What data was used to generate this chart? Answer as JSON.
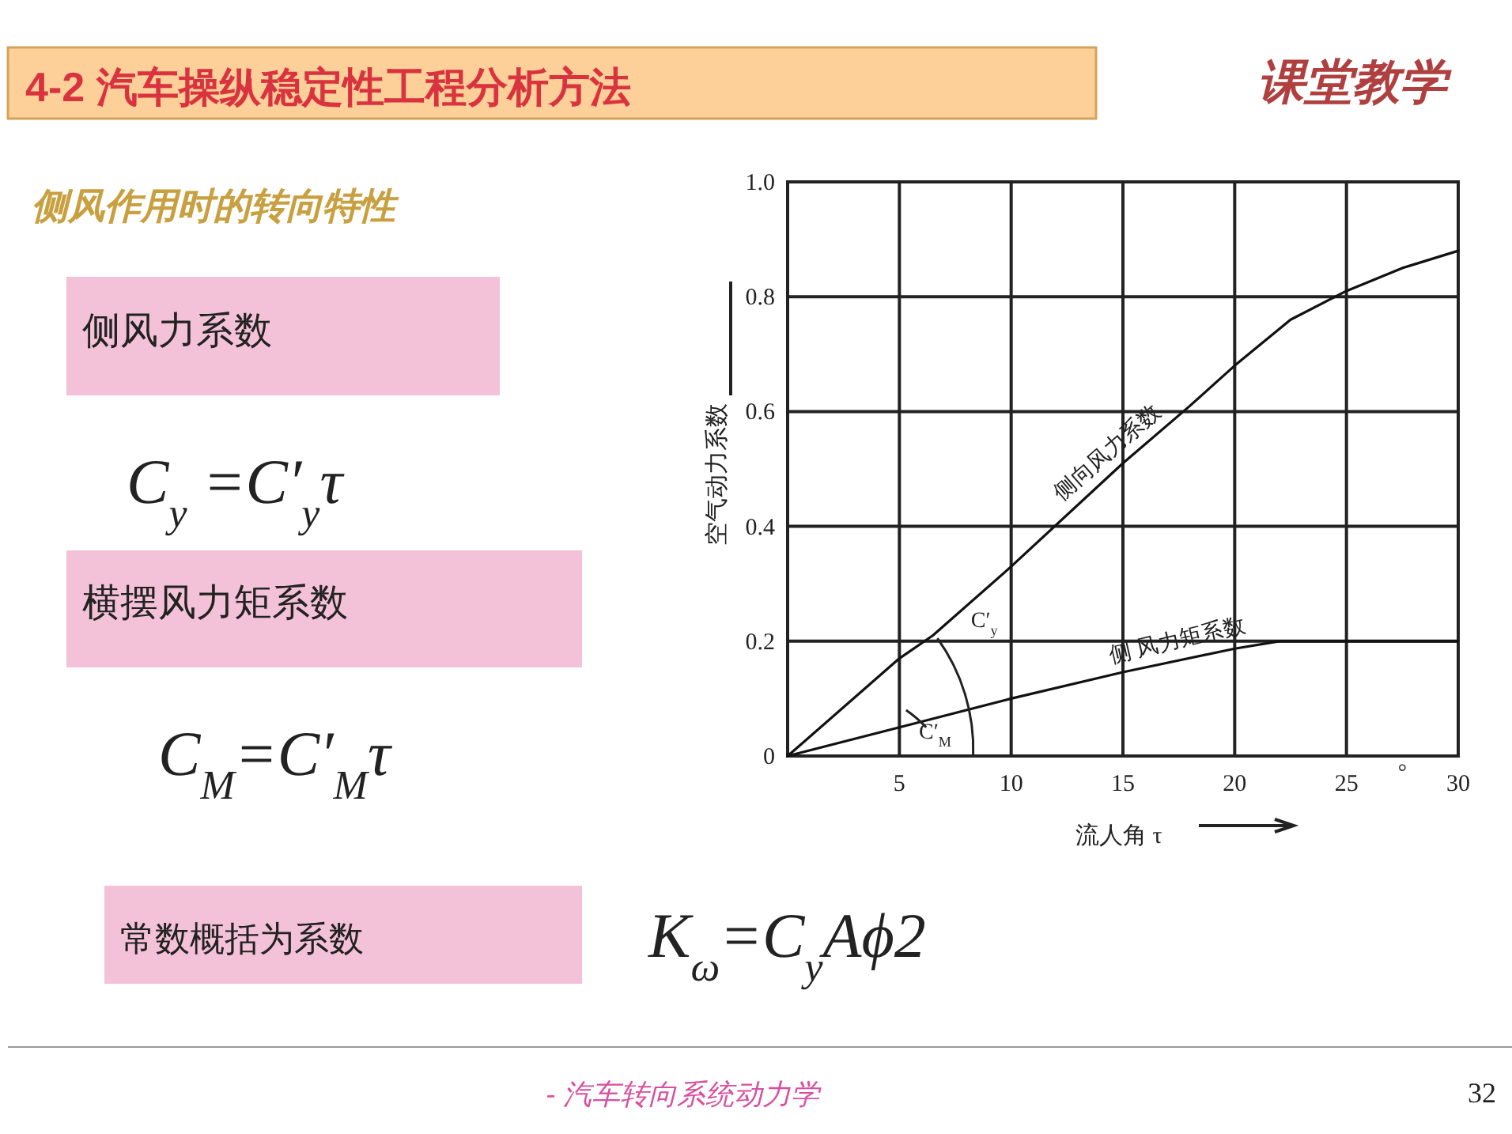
{
  "chart_data": {
    "type": "line",
    "title": "4-2 汽车操纵稳定性工程分析方法",
    "subtitle": "侧风作用时的转向特性",
    "xlabel": "流人角 τ",
    "ylabel": "空气动力系数",
    "xlim": [
      0,
      30
    ],
    "ylim": [
      0,
      1
    ],
    "xticks": [
      5,
      10,
      15,
      20,
      25,
      30
    ],
    "yticks": [
      0,
      0.2,
      0.4,
      0.6,
      {
        "value": 0.8,
        "label": "0.8"
      },
      {
        "value": 1,
        "label": "1.0"
      }
    ],
    "grid": true,
    "line_style": "solid",
    "series": [
      {
        "color": "#111111",
        "x": [
          0,
          5,
          6.5,
          10,
          15,
          18,
          20,
          22.5,
          25,
          27.5,
          30
        ],
        "values": [
          0,
          0.17,
          0.21,
          0.33,
          0.51,
          0.61,
          0.68,
          0.76,
          0.81,
          0.85,
          0.88
        ]
      },
      {
        "color": "#111111",
        "x": [
          0,
          5,
          10,
          15,
          20,
          22,
          25,
          30
        ],
        "values": [
          0,
          0.05,
          0.1,
          0.146,
          0.187,
          0.2,
          0.2,
          0.2
        ]
      }
    ],
    "annotations": [
      "侧风力系数",
      "C$_{y}$ =C′$_{y}$τ",
      "横摆风力矩系数",
      "C$_{M}$=C′$_{M}$τ",
      "常数概括为系数",
      "K$_{ω}$=C$_{y}$Aϕ2",
      "- 汽车转向系统动力学",
      "32",
      "课堂教学",
      "°",
      "侧向风力系数",
      "侧 风力矩系数",
      "C′$_{y}$",
      "C′$_{M}$"
    ]
  }
}
